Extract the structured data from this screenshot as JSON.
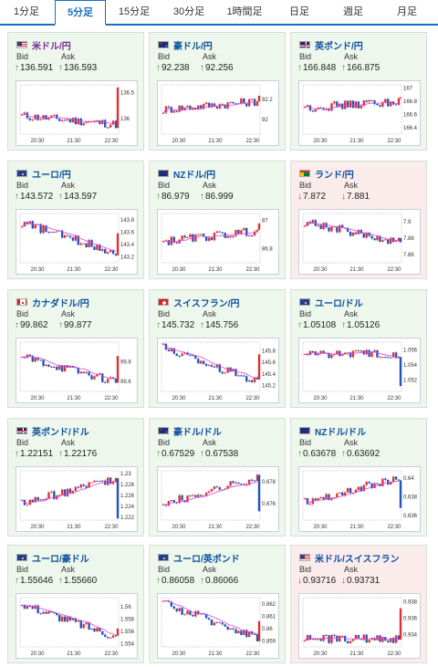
{
  "tabs": [
    {
      "label": "1分足",
      "active": false
    },
    {
      "label": "5分足",
      "active": true
    },
    {
      "label": "15分足",
      "active": false
    },
    {
      "label": "30分足",
      "active": false
    },
    {
      "label": "1時間足",
      "active": false
    },
    {
      "label": "日足",
      "active": false
    },
    {
      "label": "週足",
      "active": false
    },
    {
      "label": "月足",
      "active": false
    }
  ],
  "labels": {
    "bid": "Bid",
    "ask": "Ask"
  },
  "colors": {
    "up_card": "#eef7ec",
    "down_card": "#fbecec",
    "name": "#0b4f9e",
    "up_candle": "#d33",
    "down_candle": "#2255bb",
    "ma": "#e040e0",
    "arrow_up": "#2a9a2a",
    "arrow_down": "#d33"
  },
  "x_ticks": [
    "20:30",
    "21:30",
    "22:30"
  ],
  "pairs": [
    {
      "name": "米ドル/円",
      "name_color": "#7a2a9a",
      "direction": "up",
      "bid": "136.591",
      "ask": "136.593",
      "flag": "us",
      "chart_data": {
        "type": "candlestick",
        "y_ticks": [
          "136.5",
          "136"
        ],
        "ylim": [
          135.7,
          136.65
        ],
        "start": 136.05,
        "end": 136.6,
        "trend": "down_spike",
        "x_ticks": [
          "20:30",
          "21:30",
          "22:30"
        ]
      }
    },
    {
      "name": "豪ドル/円",
      "direction": "up",
      "bid": "92.238",
      "ask": "92.256",
      "flag": "au",
      "chart_data": {
        "type": "candlestick",
        "y_ticks": [
          "92.2",
          "92"
        ],
        "ylim": [
          91.85,
          92.35
        ],
        "start": 92.1,
        "end": 92.24,
        "trend": "flat_up",
        "x_ticks": [
          "20:30",
          "21:30",
          "22:30"
        ]
      }
    },
    {
      "name": "英ポンド/円",
      "direction": "up",
      "bid": "166.848",
      "ask": "166.875",
      "flag": "uk",
      "chart_data": {
        "type": "candlestick",
        "y_ticks": [
          "167",
          "166.8",
          "166.6",
          "166.4"
        ],
        "ylim": [
          166.3,
          167.05
        ],
        "start": 166.7,
        "end": 166.86,
        "trend": "flat_up",
        "x_ticks": [
          "20:30",
          "21:30",
          "22:30"
        ]
      }
    },
    {
      "name": "ユーロ/円",
      "direction": "up",
      "bid": "143.572",
      "ask": "143.597",
      "flag": "eu",
      "chart_data": {
        "type": "candlestick",
        "y_ticks": [
          "143.8",
          "143.6",
          "143.4",
          "143.2"
        ],
        "ylim": [
          143.1,
          143.9
        ],
        "start": 143.75,
        "end": 143.58,
        "trend": "down_spike",
        "x_ticks": [
          "20:30",
          "21:30",
          "22:30"
        ]
      }
    },
    {
      "name": "NZドル/円",
      "direction": "up",
      "bid": "86.979",
      "ask": "86.999",
      "flag": "nz",
      "chart_data": {
        "type": "candlestick",
        "y_ticks": [
          "87",
          "86.8"
        ],
        "ylim": [
          86.7,
          87.05
        ],
        "start": 86.85,
        "end": 86.98,
        "trend": "flat_up",
        "x_ticks": [
          "20:30",
          "21:30",
          "22:30"
        ]
      }
    },
    {
      "name": "ランド/円",
      "direction": "down",
      "bid": "7.872",
      "ask": "7.881",
      "flag": "za",
      "chart_data": {
        "type": "candlestick",
        "y_ticks": [
          "7.9",
          "7.88",
          "7.86"
        ],
        "ylim": [
          7.85,
          7.91
        ],
        "start": 7.9,
        "end": 7.875,
        "trend": "down",
        "x_ticks": [
          "20:30",
          "21:30",
          "22:30"
        ]
      }
    },
    {
      "name": "カナダドル/円",
      "direction": "up",
      "bid": "99.862",
      "ask": "99.877",
      "flag": "ca",
      "chart_data": {
        "type": "candlestick",
        "y_ticks": [
          "99.8",
          "99.6"
        ],
        "ylim": [
          99.5,
          100.0
        ],
        "start": 99.85,
        "end": 99.86,
        "trend": "down_spike",
        "x_ticks": [
          "20:30",
          "21:30",
          "22:30"
        ]
      }
    },
    {
      "name": "スイスフラン/円",
      "direction": "up",
      "bid": "145.732",
      "ask": "145.756",
      "flag": "ch",
      "chart_data": {
        "type": "candlestick",
        "y_ticks": [
          "145.8",
          "145.6",
          "145.4",
          "145.2"
        ],
        "ylim": [
          145.1,
          145.95
        ],
        "start": 145.85,
        "end": 145.74,
        "trend": "down_spike",
        "x_ticks": [
          "20:30",
          "21:30",
          "22:30"
        ]
      }
    },
    {
      "name": "ユーロ/ドル",
      "direction": "up",
      "bid": "1.05108",
      "ask": "1.05126",
      "flag": "eu_us",
      "chart_data": {
        "type": "candlestick",
        "y_ticks": [
          "1.056",
          "1.054",
          "1.052"
        ],
        "ylim": [
          1.0505,
          1.057
        ],
        "start": 1.0555,
        "end": 1.0512,
        "trend": "flat_drop",
        "x_ticks": [
          "20:30",
          "21:30",
          "22:30"
        ]
      }
    },
    {
      "name": "英ポンド/ドル",
      "direction": "up",
      "bid": "1.22151",
      "ask": "1.22176",
      "flag": "uk_us",
      "chart_data": {
        "type": "candlestick",
        "y_ticks": [
          "1.23",
          "1.228",
          "1.226",
          "1.224",
          "1.222"
        ],
        "ylim": [
          1.2215,
          1.2305
        ],
        "start": 1.2245,
        "end": 1.2218,
        "trend": "up_drop",
        "x_ticks": [
          "20:30",
          "21:30",
          "22:30"
        ]
      }
    },
    {
      "name": "豪ドル/ドル",
      "direction": "up",
      "bid": "0.67529",
      "ask": "0.67538",
      "flag": "au_us",
      "chart_data": {
        "type": "candlestick",
        "y_ticks": [
          "0.678",
          "0.676"
        ],
        "ylim": [
          0.6745,
          0.679
        ],
        "start": 0.676,
        "end": 0.6753,
        "trend": "up_drop",
        "x_ticks": [
          "20:30",
          "21:30",
          "22:30"
        ]
      }
    },
    {
      "name": "NZドル/ドル",
      "direction": "up",
      "bid": "0.63678",
      "ask": "0.63692",
      "flag": "nz_us",
      "chart_data": {
        "type": "candlestick",
        "y_ticks": [
          "0.64",
          "0.638",
          "0.636"
        ],
        "ylim": [
          0.6355,
          0.6408
        ],
        "start": 0.6375,
        "end": 0.6368,
        "trend": "up_drop",
        "x_ticks": [
          "20:30",
          "21:30",
          "22:30"
        ]
      }
    },
    {
      "name": "ユーロ/豪ドル",
      "direction": "up",
      "bid": "1.55646",
      "ask": "1.55660",
      "flag": "eu_au",
      "chart_data": {
        "type": "candlestick",
        "y_ticks": [
          "1.56",
          "1.558",
          "1.556",
          "1.554"
        ],
        "ylim": [
          1.5535,
          1.5615
        ],
        "start": 1.5605,
        "end": 1.5565,
        "trend": "down_spike",
        "x_ticks": [
          "20:30",
          "21:30",
          "22:30"
        ]
      }
    },
    {
      "name": "ユーロ/英ポンド",
      "direction": "up",
      "bid": "0.86058",
      "ask": "0.86066",
      "flag": "eu_uk",
      "chart_data": {
        "type": "candlestick",
        "y_ticks": [
          "0.862",
          "0.861",
          "0.86",
          "0.859"
        ],
        "ylim": [
          0.8585,
          0.8625
        ],
        "start": 0.862,
        "end": 0.8606,
        "trend": "down_spike",
        "x_ticks": [
          "20:30",
          "21:30",
          "22:30"
        ]
      }
    },
    {
      "name": "米ドル/スイスフラン",
      "direction": "down",
      "bid": "0.93716",
      "ask": "0.93731",
      "flag": "us_ch",
      "chart_data": {
        "type": "candlestick",
        "y_ticks": [
          "0.938",
          "0.936",
          "0.934"
        ],
        "ylim": [
          0.9325,
          0.9385
        ],
        "start": 0.9335,
        "end": 0.9372,
        "trend": "flat_spike",
        "x_ticks": [
          "20:30",
          "21:30",
          "22:30"
        ]
      }
    }
  ]
}
